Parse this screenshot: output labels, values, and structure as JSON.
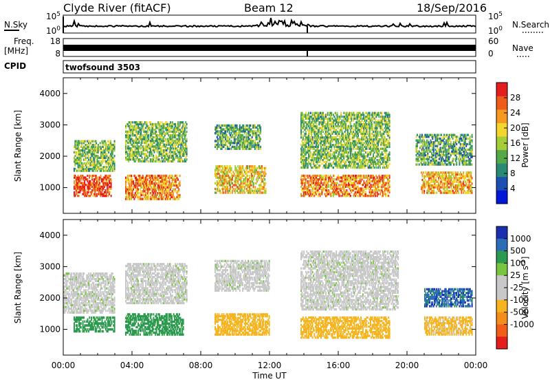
{
  "header": {
    "station": "Clyde River (fitACF)",
    "beam": "Beam 12",
    "date": "18/Sep/2016"
  },
  "strips": {
    "nsky_label": "N.Sky",
    "nsearch_label": "N.Search",
    "freq_label_top": "Freq.",
    "freq_label_units": "[MHz]",
    "nave_label": "Nave",
    "cpid_label": "CPID",
    "cpid_value": "twofsound 3503",
    "noise_ticks_left": [
      "10^5",
      "10^0"
    ],
    "noise_ticks_right": [
      "10^5",
      "10^0"
    ],
    "freq_ticks_left": [
      "18",
      "8"
    ],
    "nave_ticks_right": [
      "60",
      "0"
    ]
  },
  "colors": {
    "power": [
      "#0019d8",
      "#1d4fb2",
      "#2a8a74",
      "#55a848",
      "#a4cd3a",
      "#f4d62a",
      "#f59a1f",
      "#ef5b1a",
      "#e31e1c"
    ],
    "velocity": [
      "#e31e1c",
      "#f25d1a",
      "#f38d1c",
      "#f6b520",
      "#c8c8c8",
      "#c8c8c8",
      "#79c541",
      "#2c9a4f",
      "#2b6db6",
      "#1a2fb0"
    ]
  },
  "chart_data": [
    {
      "type": "heatmap",
      "name": "power",
      "xlabel": "",
      "ylabel": "Slant Range [km]",
      "y_ticks": [
        1000,
        2000,
        3000,
        4000
      ],
      "ylim": [
        180,
        4500
      ],
      "xlim": [
        0,
        24
      ],
      "colorbar": {
        "label": "Power [dB]",
        "range": [
          0,
          32
        ],
        "tick_values": [
          4,
          8,
          12,
          16,
          20,
          24,
          28
        ],
        "tick_labels": [
          "4",
          "8",
          "12",
          "16",
          "20",
          "24",
          "28"
        ]
      },
      "echo_regions": [
        {
          "t": [
            0.6,
            2.8
          ],
          "r": [
            700,
            1400
          ],
          "level": 28
        },
        {
          "t": [
            0.6,
            3.0
          ],
          "r": [
            1500,
            2500
          ],
          "level": 14
        },
        {
          "t": [
            3.6,
            6.8
          ],
          "r": [
            600,
            1400
          ],
          "level": 24
        },
        {
          "t": [
            3.6,
            7.2
          ],
          "r": [
            1800,
            3100
          ],
          "level": 14
        },
        {
          "t": [
            8.8,
            11.8
          ],
          "r": [
            800,
            1700
          ],
          "level": 20
        },
        {
          "t": [
            8.8,
            11.5
          ],
          "r": [
            2200,
            3000
          ],
          "level": 12
        },
        {
          "t": [
            13.8,
            19.0
          ],
          "r": [
            700,
            1400
          ],
          "level": 24
        },
        {
          "t": [
            13.8,
            19.0
          ],
          "r": [
            1600,
            3400
          ],
          "level": 14
        },
        {
          "t": [
            20.8,
            23.8
          ],
          "r": [
            800,
            1500
          ],
          "level": 22
        },
        {
          "t": [
            20.5,
            23.8
          ],
          "r": [
            1700,
            2700
          ],
          "level": 12
        }
      ]
    },
    {
      "type": "heatmap",
      "name": "velocity",
      "xlabel": "Time UT",
      "ylabel": "Slant Range [km]",
      "y_ticks": [
        1000,
        2000,
        3000,
        4000
      ],
      "ylim": [
        180,
        4500
      ],
      "xlim": [
        0,
        24
      ],
      "x_ticks": [
        "00:00",
        "04:00",
        "08:00",
        "12:00",
        "16:00",
        "20:00",
        "00:00"
      ],
      "colorbar": {
        "label": "Velocity [m s^-1]",
        "tick_labels": [
          "1000",
          "500",
          "100",
          "25",
          "-25",
          "-100",
          "-500",
          "-1000"
        ]
      },
      "echo_regions": [
        {
          "t": [
            0.6,
            3.0
          ],
          "r": [
            900,
            1400
          ],
          "level": 250
        },
        {
          "t": [
            0.0,
            3.0
          ],
          "r": [
            1500,
            2800
          ],
          "level": 0
        },
        {
          "t": [
            3.6,
            7.0
          ],
          "r": [
            800,
            1500
          ],
          "level": 250
        },
        {
          "t": [
            3.6,
            7.2
          ],
          "r": [
            1800,
            3100
          ],
          "level": 0
        },
        {
          "t": [
            8.8,
            12.0
          ],
          "r": [
            800,
            1500
          ],
          "level": -300
        },
        {
          "t": [
            8.8,
            12.0
          ],
          "r": [
            2200,
            3200
          ],
          "level": 0
        },
        {
          "t": [
            13.8,
            19.0
          ],
          "r": [
            700,
            1400
          ],
          "level": -300
        },
        {
          "t": [
            13.8,
            19.5
          ],
          "r": [
            1600,
            3500
          ],
          "level": 0
        },
        {
          "t": [
            21.0,
            23.8
          ],
          "r": [
            800,
            1400
          ],
          "level": -200
        },
        {
          "t": [
            21.0,
            23.8
          ],
          "r": [
            1700,
            2300
          ],
          "level": 800
        }
      ]
    }
  ]
}
